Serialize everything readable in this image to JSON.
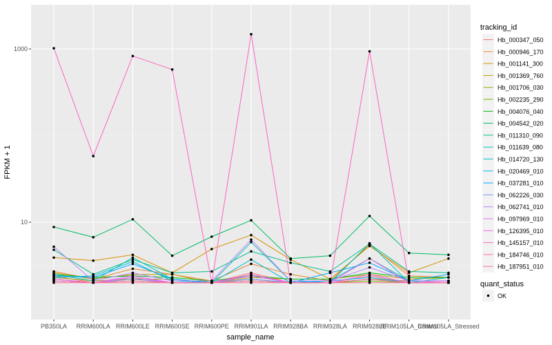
{
  "chart_data": {
    "type": "line",
    "title": "",
    "xlabel": "sample_name",
    "ylabel": "FPKM + 1",
    "y_scale": "log10",
    "ylim": [
      1.6,
      2000
    ],
    "y_ticks": [
      {
        "value": 10,
        "label": "10"
      },
      {
        "value": 1000,
        "label": "1000"
      }
    ],
    "categories": [
      "PB350LA",
      "RRIM600LA",
      "RRIM600LE",
      "RRIM600SE",
      "RRIM600PE",
      "RRIM901LA",
      "RRIM928BA",
      "RRIM928LA",
      "RRIM928LE",
      "RRIM105LA_Control",
      "RRIM105LA_Stressed"
    ],
    "legend_title": "tracking_id",
    "point_legend_title": "quant_status",
    "point_legend_label": "OK",
    "series": [
      {
        "name": "Hb_000347_050",
        "color": "#F8766D",
        "values": [
          2.4,
          2.0,
          2.2,
          2.0,
          2.0,
          2.6,
          2.0,
          2.0,
          2.4,
          2.0,
          2.1
        ]
      },
      {
        "name": "Hb_000946_170",
        "color": "#E9842C",
        "values": [
          2.7,
          2.2,
          2.9,
          2.5,
          2.1,
          3.3,
          2.5,
          2.1,
          5.5,
          2.4,
          2.3
        ]
      },
      {
        "name": "Hb_001141_300",
        "color": "#D69100",
        "values": [
          3.9,
          3.6,
          4.2,
          2.6,
          4.9,
          7.1,
          3.7,
          2.2,
          5.3,
          2.6,
          3.8
        ]
      },
      {
        "name": "Hb_001369_760",
        "color": "#BC9D00",
        "values": [
          2.6,
          2.2,
          2.5,
          2.5,
          2.0,
          2.3,
          2.2,
          2.2,
          2.5,
          2.2,
          2.3
        ]
      },
      {
        "name": "Hb_001706_030",
        "color": "#9CA700",
        "values": [
          2.3,
          2.1,
          2.2,
          2.2,
          2.0,
          2.2,
          2.0,
          2.0,
          2.2,
          2.1,
          2.1
        ]
      },
      {
        "name": "Hb_002235_290",
        "color": "#6FB000",
        "values": [
          2.2,
          2.0,
          2.1,
          2.0,
          2.0,
          2.1,
          2.0,
          2.0,
          2.1,
          2.0,
          2.0
        ]
      },
      {
        "name": "Hb_004076_040",
        "color": "#00B813",
        "values": [
          2.5,
          2.3,
          2.4,
          2.3,
          2.1,
          2.4,
          2.2,
          2.2,
          2.6,
          2.3,
          2.3
        ]
      },
      {
        "name": "Hb_004542_020",
        "color": "#00BD61",
        "values": [
          8.8,
          6.7,
          10.8,
          4.1,
          6.8,
          10.5,
          3.8,
          4.1,
          11.8,
          4.4,
          4.2
        ]
      },
      {
        "name": "Hb_011310_090",
        "color": "#00C08E",
        "values": [
          4.8,
          2.5,
          3.7,
          2.6,
          2.7,
          4.6,
          3.4,
          2.7,
          5.6,
          2.7,
          2.6
        ]
      },
      {
        "name": "Hb_011639_080",
        "color": "#00C0B4",
        "values": [
          2.5,
          2.1,
          3.9,
          2.2,
          2.0,
          5.9,
          2.1,
          2.0,
          5.7,
          2.0,
          2.3
        ]
      },
      {
        "name": "Hb_014720_130",
        "color": "#00BDD4",
        "values": [
          2.3,
          2.4,
          3.5,
          2.1,
          2.0,
          3.7,
          2.0,
          2.1,
          3.8,
          2.1,
          2.1
        ]
      },
      {
        "name": "Hb_020469_010",
        "color": "#00B5EE",
        "values": [
          2.1,
          2.0,
          2.3,
          2.0,
          2.0,
          2.2,
          2.0,
          2.1,
          2.3,
          2.0,
          2.0
        ]
      },
      {
        "name": "Hb_037281_010",
        "color": "#00A7FF",
        "values": [
          2.4,
          2.3,
          3.3,
          2.2,
          2.0,
          2.4,
          2.0,
          2.6,
          3.4,
          2.1,
          2.5
        ]
      },
      {
        "name": "Hb_062226_030",
        "color": "#7F96FF",
        "values": [
          2.2,
          2.0,
          2.2,
          2.0,
          2.0,
          2.2,
          2.0,
          2.0,
          2.2,
          2.0,
          2.0
        ]
      },
      {
        "name": "Hb_062741_010",
        "color": "#BC81FF",
        "values": [
          5.2,
          2.1,
          2.6,
          2.1,
          2.1,
          6.3,
          2.1,
          2.1,
          3.0,
          2.1,
          2.1
        ]
      },
      {
        "name": "Hb_097969_010",
        "color": "#E26EF7",
        "values": [
          2.2,
          2.0,
          2.4,
          2.0,
          2.0,
          2.4,
          2.0,
          2.0,
          2.5,
          2.0,
          2.1
        ]
      },
      {
        "name": "Hb_126395_010",
        "color": "#F863DF",
        "values": [
          2.2,
          2.0,
          2.3,
          2.0,
          2.0,
          2.5,
          2.0,
          2.0,
          3.8,
          2.0,
          2.0
        ]
      },
      {
        "name": "Hb_145157_010",
        "color": "#FF62BF",
        "values": [
          1020,
          58,
          830,
          580,
          2.0,
          1480,
          2.0,
          2.0,
          940,
          2.0,
          2.0
        ]
      },
      {
        "name": "Hb_184746_010",
        "color": "#FF6A9A",
        "values": [
          2.1,
          2.0,
          2.1,
          2.0,
          2.0,
          2.1,
          2.0,
          2.0,
          2.2,
          2.0,
          2.0
        ]
      },
      {
        "name": "Hb_187951_010",
        "color": "#FF6C91",
        "values": [
          2.0,
          2.0,
          2.0,
          2.0,
          2.0,
          2.0,
          2.0,
          2.0,
          2.0,
          2.0,
          2.0
        ]
      }
    ]
  }
}
